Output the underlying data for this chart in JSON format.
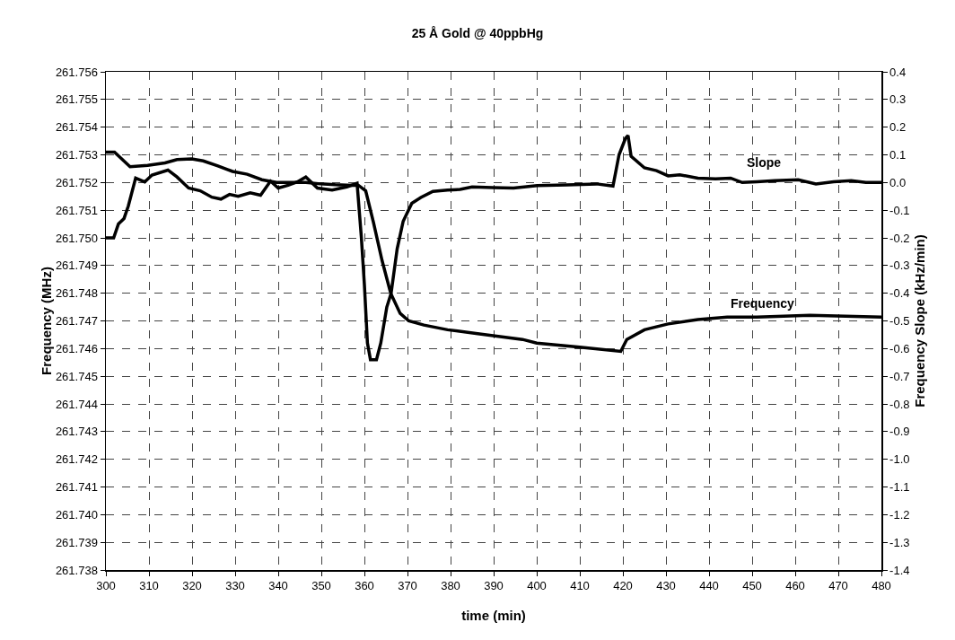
{
  "chart_data": {
    "type": "line",
    "title": "25 Å Gold @ 40ppbHg",
    "xlabel": "time (min)",
    "ylabel": "Frequency (MHz)",
    "y2label": "Frequency Slope (kHz/min)",
    "xlim": [
      300,
      480
    ],
    "xticks": [
      300,
      310,
      320,
      330,
      340,
      350,
      360,
      370,
      380,
      390,
      400,
      410,
      420,
      430,
      440,
      450,
      460,
      470,
      480
    ],
    "ylim": [
      261.738,
      261.756
    ],
    "yticks": [
      261.738,
      261.739,
      {
        "value": 261.74,
        "label": "261.740"
      },
      261.741,
      261.742,
      261.743,
      261.744,
      261.745,
      261.746,
      261.747,
      261.748,
      261.749,
      {
        "value": 261.75,
        "label": "261.750"
      },
      261.751,
      261.752,
      261.753,
      261.754,
      261.755,
      261.756
    ],
    "y2lim": [
      -1.4,
      0.4
    ],
    "y2ticks": [
      -1.4,
      -1.3,
      -1.2,
      -1.1,
      {
        "value": -1.0,
        "label": "-1.0"
      },
      -0.9,
      -0.8,
      -0.7,
      -0.6,
      -0.5,
      -0.4,
      -0.3,
      -0.2,
      -0.1,
      {
        "value": 0,
        "label": "0.0"
      },
      0.1,
      0.2,
      0.3,
      0.4
    ],
    "grid": true,
    "line_style": "solid",
    "marker": "none",
    "series": [
      {
        "color": "#000000",
        "x": [
          300,
          302,
          305.6,
          309.7,
          313.7,
          316.5,
          319.9,
          322.6,
          326,
          329.4,
          332.8,
          336.2,
          339.6,
          343,
          346.4,
          349.8,
          353.2,
          357.3,
          358.6,
          360.3,
          362.1,
          364.1,
          366.1,
          368.3,
          370.3,
          373.8,
          379.3,
          386.3,
          396.7,
          400,
          410,
          419.5,
          420.9,
          425,
          430.5,
          437.4,
          444.2,
          451.1,
          463.4,
          480
        ],
        "values": [
          261.7531,
          261.7531,
          261.75257,
          261.75262,
          261.75271,
          261.75283,
          261.75285,
          261.75278,
          261.7526,
          261.7524,
          261.7523,
          261.7521,
          261.752,
          261.752,
          261.752,
          261.75195,
          261.75192,
          261.7519,
          261.7519,
          261.7517,
          261.75056,
          261.74918,
          261.748,
          261.74727,
          261.747,
          261.74685,
          261.74668,
          261.74654,
          261.74633,
          261.7462,
          261.74605,
          261.7459,
          261.74633,
          261.74668,
          261.74689,
          261.74705,
          261.74714,
          261.74714,
          261.7472,
          261.74714
        ]
      },
      {
        "color": "#000000",
        "axis": "y2",
        "x": [
          300,
          301.8,
          302.9,
          304.2,
          305.2,
          306.9,
          309,
          310.7,
          314.4,
          316.5,
          319.2,
          321.9,
          324.6,
          326.7,
          328.7,
          330.7,
          333.5,
          335.9,
          338.2,
          340,
          342.3,
          344.4,
          346.4,
          349.1,
          352.5,
          355.9,
          358.3,
          359.3,
          360,
          360.7,
          361.4,
          362.8,
          363.8,
          365.2,
          366.2,
          367.6,
          369,
          371,
          373.1,
          375.9,
          379.3,
          382.2,
          385,
          389.8,
          394.6,
          400.1,
          407,
          413.9,
          417.7,
          419.1,
          420.6,
          421.2,
          421.9,
          425,
          427.8,
          430.5,
          433.2,
          437.4,
          441.5,
          445,
          447.7,
          451.1,
          455.2,
          460.7,
          464.8,
          468.9,
          473,
          476.4,
          480
        ],
        "values": [
          -0.2,
          -0.2,
          -0.15,
          -0.13,
          -0.085,
          0.016,
          0.002,
          0.027,
          0.045,
          0.02,
          -0.02,
          -0.03,
          -0.053,
          -0.06,
          -0.043,
          -0.05,
          -0.037,
          -0.046,
          0.005,
          -0.02,
          -0.01,
          0.002,
          0.02,
          -0.02,
          -0.027,
          -0.016,
          -0.003,
          -0.2,
          -0.37,
          -0.58,
          -0.64,
          -0.64,
          -0.58,
          -0.45,
          -0.4,
          -0.24,
          -0.14,
          -0.075,
          -0.054,
          -0.032,
          -0.027,
          -0.025,
          -0.016,
          -0.018,
          -0.02,
          -0.011,
          -0.009,
          -0.005,
          -0.013,
          0.1,
          0.16,
          0.17,
          0.095,
          0.053,
          0.043,
          0.024,
          0.028,
          0.016,
          0.013,
          0.016,
          0,
          0.003,
          0.007,
          0.01,
          -0.005,
          0.003,
          0.007,
          0,
          0
        ]
      }
    ],
    "annotations": [
      "Slope",
      "Frequency"
    ]
  }
}
